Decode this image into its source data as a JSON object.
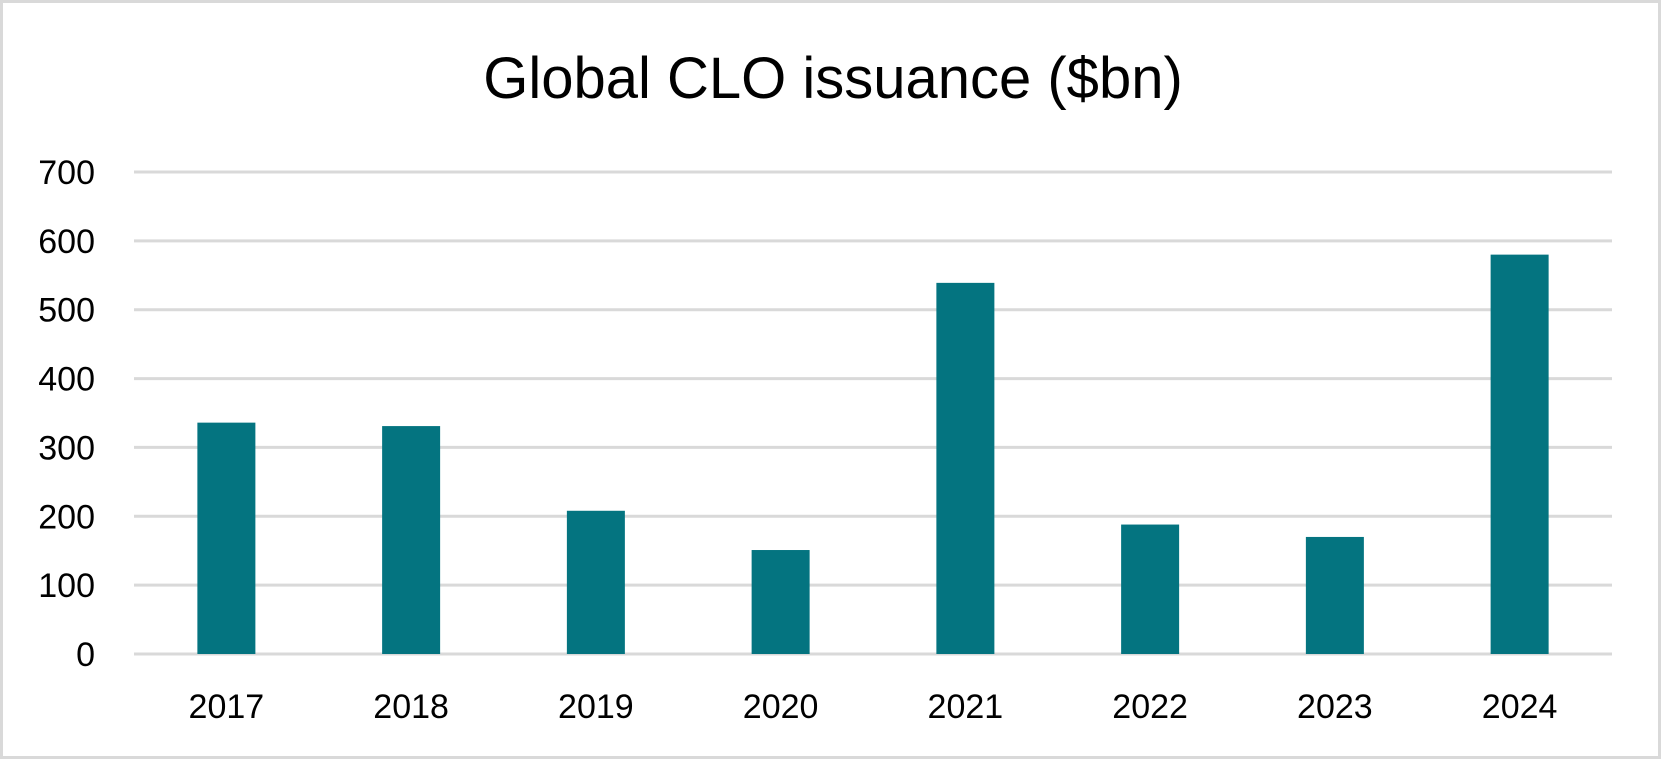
{
  "chart_data": {
    "type": "bar",
    "title": "Global CLO issuance ($bn)",
    "xlabel": "",
    "ylabel": "",
    "categories": [
      "2017",
      "2018",
      "2019",
      "2020",
      "2021",
      "2022",
      "2023",
      "2024"
    ],
    "values": [
      336,
      331,
      208,
      151,
      539,
      188,
      170,
      580
    ],
    "ylim": [
      0,
      700
    ],
    "yticks": [
      "0",
      "100",
      "200",
      "300",
      "400",
      "500",
      "600",
      "700"
    ],
    "grid": true,
    "legend": "none",
    "colors": {
      "bar": "#047480",
      "grid": "#d9d9d9",
      "border": "#d9d9d9"
    }
  }
}
